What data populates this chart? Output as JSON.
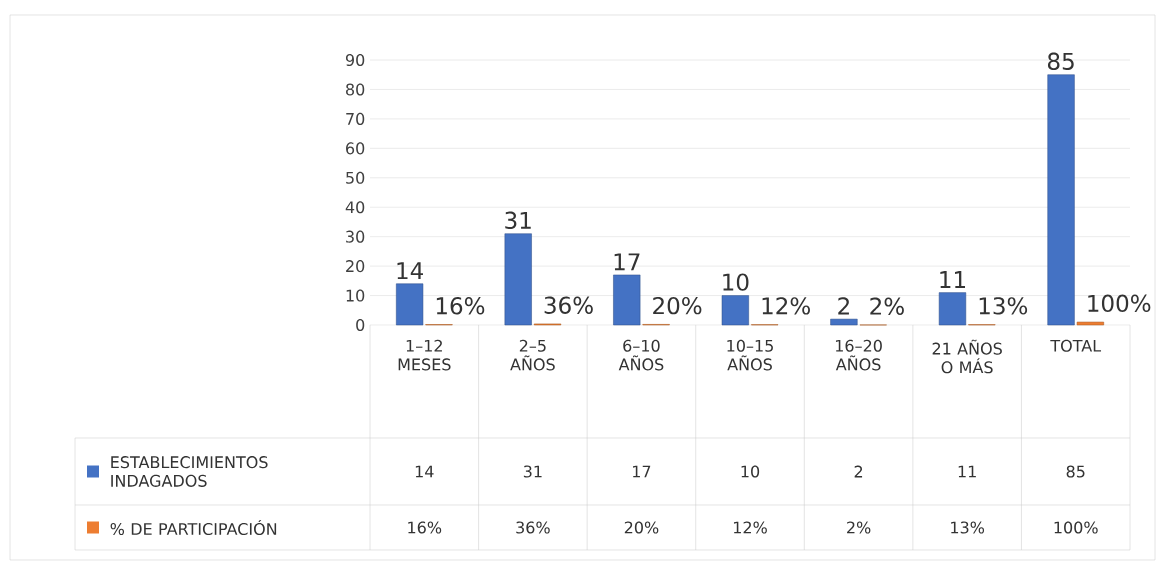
{
  "chart_data": {
    "type": "bar",
    "categories": [
      "1–12 MESES",
      "2–5 AÑOS",
      "6–10 AÑOS",
      "10–15 AÑOS",
      "16–20 AÑOS",
      "21 AÑOS O MÁS",
      "TOTAL"
    ],
    "series": [
      {
        "name": "ESTABLECIMIENTOS INDAGADOS",
        "color": "#4472c4",
        "values": [
          14,
          31,
          17,
          10,
          2,
          11,
          85
        ],
        "value_labels": [
          "14",
          "31",
          "17",
          "10",
          "2",
          "11",
          "85"
        ]
      },
      {
        "name": "% DE PARTICIPACIÓN",
        "color": "#ed7d31",
        "values": [
          0.16,
          0.36,
          0.2,
          0.12,
          0.02,
          0.13,
          1
        ],
        "value_labels": [
          "16%",
          "36%",
          "20%",
          "12%",
          "2%",
          "13%",
          "100%"
        ]
      }
    ],
    "ylim": [
      0,
      90
    ],
    "yticks": [
      0,
      10,
      20,
      30,
      40,
      50,
      60,
      70,
      80,
      90
    ],
    "grid": "y",
    "legend": "bottom"
  }
}
